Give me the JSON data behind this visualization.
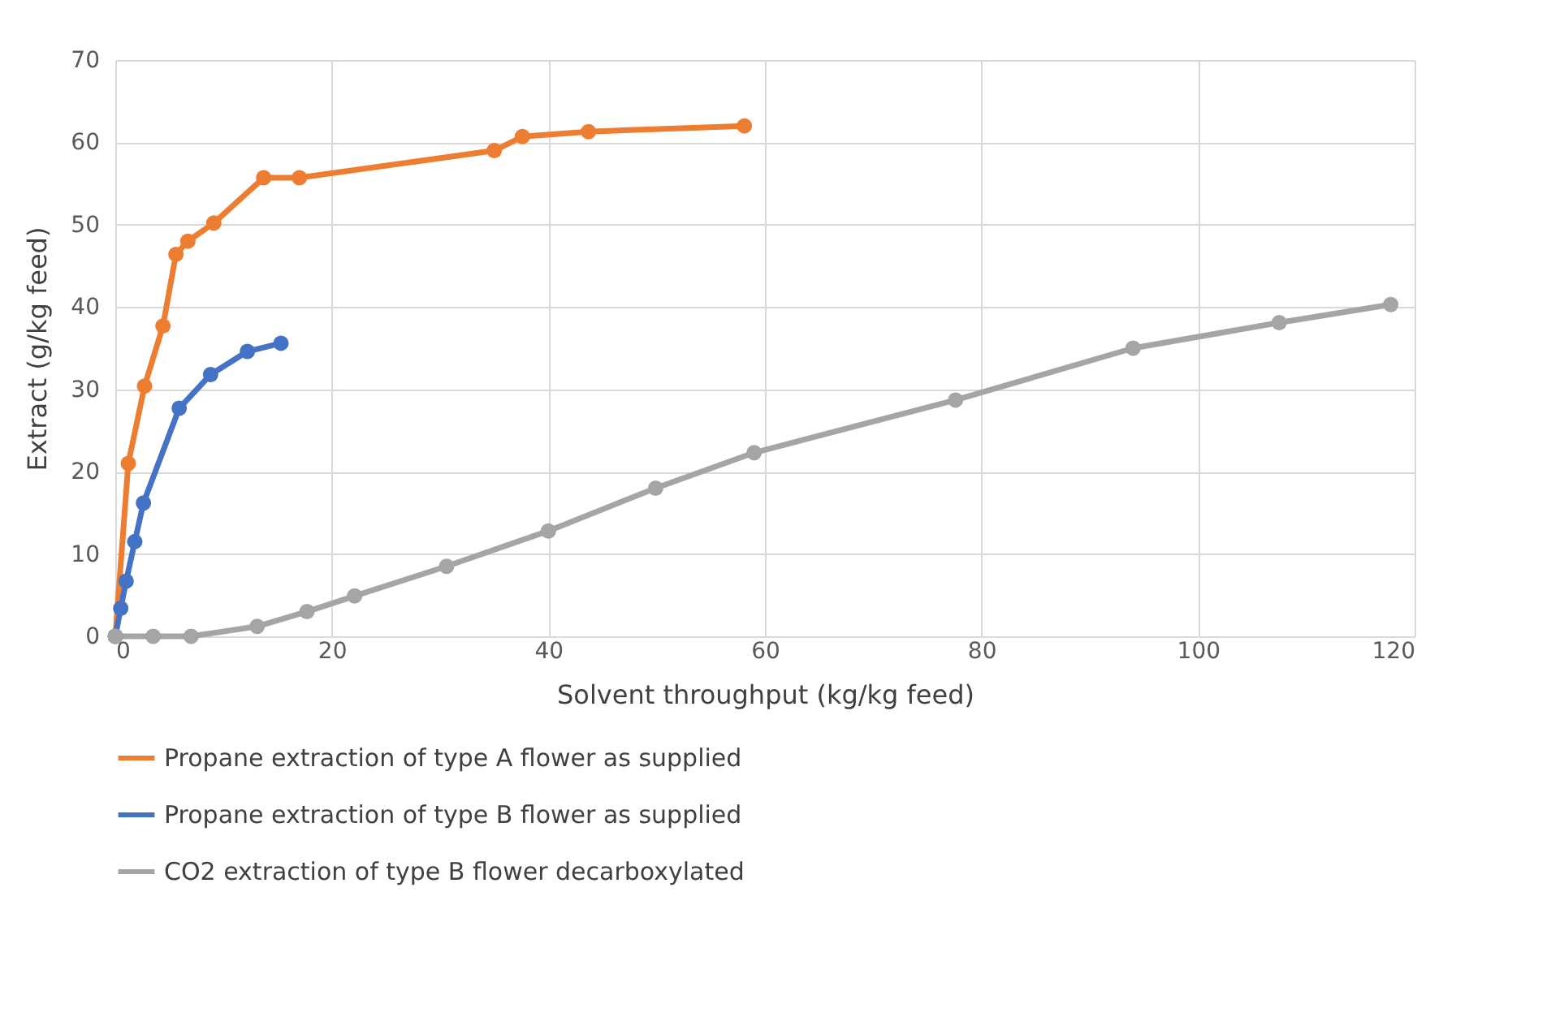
{
  "chart_data": {
    "type": "line",
    "xlabel": "Solvent throughput (kg/kg feed)",
    "ylabel": "Extract (g/kg feed)",
    "xlim": [
      0,
      120
    ],
    "xticks": [
      0,
      20,
      40,
      60,
      80,
      100,
      120
    ],
    "ylim": [
      0,
      70
    ],
    "yticks": [
      0,
      10,
      20,
      30,
      40,
      50,
      60,
      70
    ],
    "grid": true,
    "legend": "bottom",
    "marker": "circle",
    "line_style": "solid",
    "series": [
      {
        "name": "Propane extraction of type A flower as supplied",
        "color": "#ed7d31",
        "x": [
          0,
          1.2,
          2.7,
          4.4,
          5.6,
          6.7,
          9.1,
          13.7,
          17,
          35,
          37.6,
          43.7,
          58.1
        ],
        "values": [
          0,
          21,
          30.4,
          37.7,
          46.4,
          48,
          50.2,
          55.7,
          55.7,
          59,
          60.7,
          61.3,
          62
        ]
      },
      {
        "name": "Propane extraction of type B flower as supplied",
        "color": "#4472c4",
        "x": [
          0,
          0.5,
          1,
          1.8,
          2.6,
          5.9,
          8.8,
          12.2,
          15.3
        ],
        "values": [
          0,
          3.4,
          6.7,
          11.5,
          16.2,
          27.7,
          31.8,
          34.6,
          35.6
        ]
      },
      {
        "name": "CO2 extraction of type B flower decarboxylated",
        "color": "#a5a5a5",
        "x": [
          0,
          3.5,
          7,
          13.1,
          17.7,
          22.1,
          30.6,
          40,
          49.9,
          59,
          77.6,
          94,
          107.5,
          117.8
        ],
        "values": [
          0,
          0,
          0,
          1.2,
          3,
          4.9,
          8.5,
          12.8,
          18,
          22.3,
          28.7,
          35,
          38.1,
          40.3
        ]
      }
    ]
  }
}
